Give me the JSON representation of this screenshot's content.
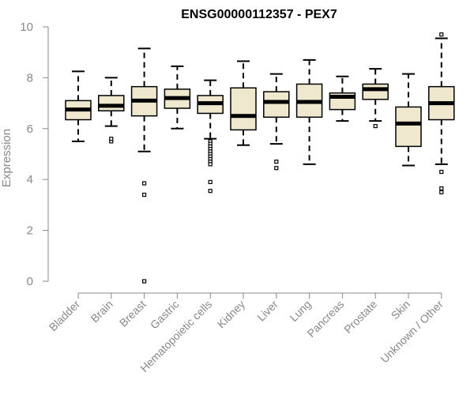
{
  "chart_data": {
    "type": "box",
    "title": "ENSG00000112357 - PEX7",
    "xlabel": "",
    "ylabel": "Expression",
    "ylim": [
      0,
      10
    ],
    "yticks": [
      "0",
      "2",
      "4",
      "6",
      "8",
      "10"
    ],
    "grid": false,
    "colors": {
      "box_fill": "#efe8cf",
      "stroke": "#000000",
      "axis": "#888888"
    },
    "categories": [
      "Bladder",
      "Brain",
      "Breast",
      "Gastric",
      "Hematopoietic cells",
      "Kidney",
      "Liver",
      "Lung",
      "Pancreas",
      "Prostate",
      "Skin",
      "Unknown / Other"
    ],
    "boxes": [
      {
        "whislo": 5.5,
        "q1": 6.35,
        "med": 6.75,
        "q3": 7.1,
        "whishi": 8.25,
        "fliers": []
      },
      {
        "whislo": 6.1,
        "q1": 6.7,
        "med": 6.9,
        "q3": 7.3,
        "whishi": 8.0,
        "fliers": [
          5.5,
          5.6
        ]
      },
      {
        "whislo": 5.1,
        "q1": 6.5,
        "med": 7.1,
        "q3": 7.65,
        "whishi": 9.15,
        "fliers": [
          3.85,
          3.4,
          0.0
        ]
      },
      {
        "whislo": 6.0,
        "q1": 6.8,
        "med": 7.2,
        "q3": 7.55,
        "whishi": 8.45,
        "fliers": []
      },
      {
        "whislo": 5.6,
        "q1": 6.6,
        "med": 7.0,
        "q3": 7.3,
        "whishi": 7.9,
        "fliers": [
          5.5,
          5.4,
          5.3,
          5.2,
          5.1,
          5.0,
          4.9,
          4.8,
          4.7,
          4.6,
          3.9,
          3.55
        ]
      },
      {
        "whislo": 5.35,
        "q1": 5.95,
        "med": 6.5,
        "q3": 7.6,
        "whishi": 8.65,
        "fliers": []
      },
      {
        "whislo": 5.4,
        "q1": 6.45,
        "med": 7.05,
        "q3": 7.45,
        "whishi": 8.15,
        "fliers": [
          4.7,
          4.45
        ]
      },
      {
        "whislo": 4.6,
        "q1": 6.45,
        "med": 7.05,
        "q3": 7.75,
        "whishi": 8.7,
        "fliers": []
      },
      {
        "whislo": 6.3,
        "q1": 6.75,
        "med": 7.25,
        "q3": 7.4,
        "whishi": 8.05,
        "fliers": []
      },
      {
        "whislo": 6.3,
        "q1": 7.15,
        "med": 7.55,
        "q3": 7.75,
        "whishi": 8.35,
        "fliers": [
          6.1
        ]
      },
      {
        "whislo": 4.55,
        "q1": 5.3,
        "med": 6.2,
        "q3": 6.85,
        "whishi": 8.15,
        "fliers": []
      },
      {
        "whislo": 4.6,
        "q1": 6.35,
        "med": 7.0,
        "q3": 7.65,
        "whishi": 9.55,
        "fliers": [
          9.7,
          4.3,
          3.65,
          3.5
        ]
      }
    ]
  }
}
